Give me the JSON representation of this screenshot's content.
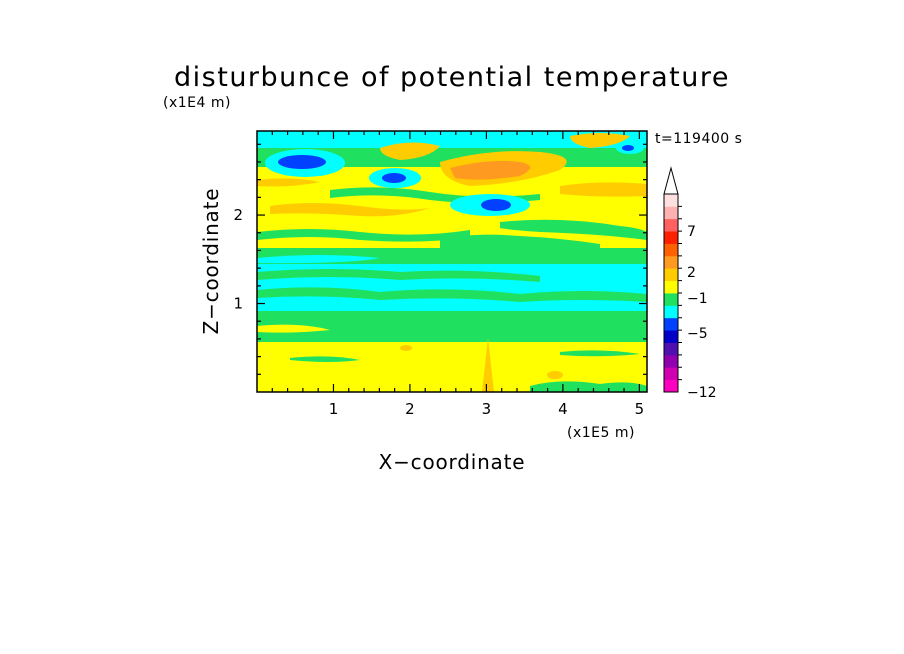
{
  "chart_data": {
    "type": "heatmap",
    "title": "disturbunce of potential temperature",
    "time_label": "t=119400 s",
    "xlabel": "X−coordinate",
    "ylabel": "Z−coordinate",
    "x_scale_label": "(x1E5 m)",
    "y_scale_label": "(x1E4 m)",
    "xlim": [
      0,
      5.1
    ],
    "ylim": [
      0,
      2.95
    ],
    "x_ticks": [
      1,
      2,
      3,
      4,
      5
    ],
    "y_ticks": [
      1,
      2
    ],
    "colorbar": {
      "labeled_values": [
        7,
        2,
        -1,
        -5,
        -12
      ],
      "labels": [
        "7",
        "2",
        "−1",
        "−5",
        "−12"
      ],
      "colors": [
        "#ff00c0",
        "#d000b0",
        "#9000b0",
        "#5010b0",
        "#0000c8",
        "#0040ff",
        "#00ffff",
        "#20e060",
        "#ffff00",
        "#ffcc00",
        "#ff9a20",
        "#ff6000",
        "#ff2000",
        "#ff6060",
        "#ffb0b0",
        "#ffe0e0"
      ],
      "extends_max": true
    },
    "field_bands": [
      {
        "z": [
          0.0,
          0.55
        ],
        "level": "yellow",
        "description_value": 0.8
      },
      {
        "z": [
          0.55,
          0.75
        ],
        "level": "green",
        "description_value": -0.3
      },
      {
        "z": [
          0.75,
          1.35
        ],
        "level": "cyan",
        "description_value": -1.2
      },
      {
        "z": [
          1.35,
          1.55
        ],
        "level": "green",
        "description_value": -0.3
      },
      {
        "z": [
          1.55,
          2.4
        ],
        "level": "yellow",
        "description_value": 1.2
      },
      {
        "z": [
          2.4,
          2.65
        ],
        "level": "green",
        "description_value": -0.3
      },
      {
        "z": [
          2.65,
          2.95
        ],
        "level": "cyan",
        "description_value": -1.2
      }
    ]
  }
}
